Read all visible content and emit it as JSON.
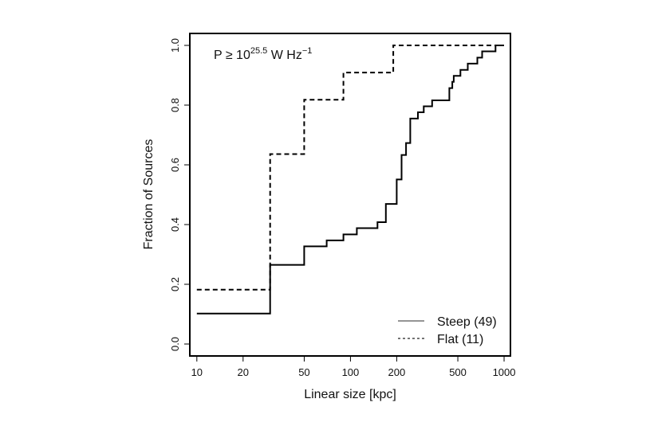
{
  "chart_data": {
    "type": "line",
    "subtype": "step (empirical cumulative distribution)",
    "title": "",
    "xlabel": "Linear size [kpc]",
    "ylabel": "Fraction of Sources",
    "xscale": "log",
    "xlim": [
      9,
      1100
    ],
    "ylim": [
      -0.04,
      1.04
    ],
    "xticks": [
      10,
      20,
      50,
      100,
      200,
      500,
      1000
    ],
    "xtick_labels": [
      "10",
      "20",
      "50",
      "100",
      "200",
      "500",
      "1000"
    ],
    "yticks": [
      0.0,
      0.2,
      0.4,
      0.6,
      0.8,
      1.0
    ],
    "ytick_labels": [
      "0.0",
      "0.2",
      "0.4",
      "0.6",
      "0.8",
      "1.0"
    ],
    "annotation": {
      "prefix": "P ≥ 10",
      "exponent": "25.5",
      "suffix": " W Hz",
      "suffix_exponent": "−1"
    },
    "legend_position": "bottom-right",
    "series": [
      {
        "name": "Steep (49)",
        "style": "solid",
        "x": [
          10,
          30,
          30,
          50,
          70,
          90,
          110,
          150,
          170,
          200,
          215,
          230,
          245,
          275,
          300,
          320,
          340,
          390,
          440,
          460,
          470,
          520,
          580,
          620,
          670,
          720,
          780,
          880,
          1000
        ],
        "y": [
          0.102,
          0.102,
          0.265,
          0.327,
          0.347,
          0.367,
          0.388,
          0.408,
          0.469,
          0.551,
          0.633,
          0.673,
          0.755,
          0.776,
          0.796,
          0.796,
          0.816,
          0.816,
          0.857,
          0.878,
          0.898,
          0.918,
          0.939,
          0.939,
          0.959,
          0.98,
          0.98,
          1.0,
          1.0
        ]
      },
      {
        "name": "Flat (11)",
        "style": "dashed",
        "x": [
          10,
          30,
          30,
          50,
          90,
          190,
          1000
        ],
        "y": [
          0.182,
          0.182,
          0.636,
          0.818,
          0.909,
          1.0,
          1.0
        ]
      }
    ]
  }
}
